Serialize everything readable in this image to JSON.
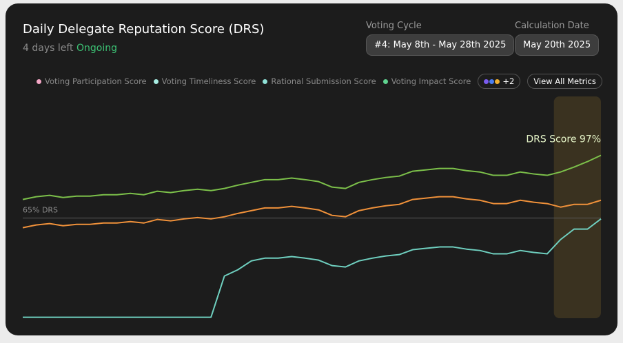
{
  "header": {
    "title": "Daily Delegate Reputation Score (DRS)",
    "time_left": "4 days left",
    "status": "Ongoing",
    "voting_cycle_label": "Voting Cycle",
    "voting_cycle": "#4: May 8th - May 28th 2025",
    "calculation_date_label": "Calculation Date",
    "calculation_date": "May 20th 2025"
  },
  "legend": {
    "items": [
      {
        "name": "Voting Participation Score",
        "color": "#f4a7c6"
      },
      {
        "name": "Voting Timeliness Score",
        "color": "#a8ede3"
      },
      {
        "name": "Rational Submission Score",
        "color": "#8fe0d6"
      },
      {
        "name": "Voting Impact Score",
        "color": "#5fd38f"
      }
    ],
    "more": "+2",
    "button": "View All Metrics"
  },
  "chart_data": {
    "type": "line",
    "ylim": [
      14,
      127
    ],
    "reference_line": {
      "label": "65% DRS",
      "value": 65
    },
    "annotation": {
      "text": "DRS Score 97%",
      "value": 97
    },
    "series": [
      {
        "color": "#7cc04a",
        "values": [
          74.5,
          75.9,
          76.6,
          75.5,
          76.2,
          76.2,
          76.9,
          76.9,
          77.6,
          76.9,
          78.7,
          78.0,
          79.0,
          79.7,
          79.0,
          80.1,
          81.8,
          83.2,
          84.6,
          84.6,
          85.4,
          84.6,
          83.6,
          80.8,
          80.1,
          83.2,
          84.6,
          85.7,
          86.4,
          88.9,
          89.6,
          90.3,
          90.3,
          89.2,
          88.5,
          86.8,
          86.8,
          88.5,
          87.5,
          86.8,
          88.5,
          91.0,
          93.8,
          97
        ]
      },
      {
        "color": "#f0913a",
        "values": [
          60.1,
          61.5,
          62.2,
          61.1,
          61.8,
          61.8,
          62.5,
          62.5,
          63.2,
          62.5,
          64.3,
          63.6,
          64.6,
          65.3,
          64.6,
          65.7,
          67.4,
          68.8,
          70.2,
          70.2,
          71.0,
          70.2,
          69.2,
          66.4,
          65.7,
          68.8,
          70.2,
          71.3,
          72.0,
          74.5,
          75.2,
          75.9,
          75.9,
          74.8,
          74.1,
          72.4,
          72.4,
          74.1,
          73.1,
          72.4,
          70.6,
          72.0,
          72.0,
          74.1
        ]
      },
      {
        "color": "#6fd0c0",
        "values": [
          14.5,
          14.5,
          14.5,
          14.5,
          14.5,
          14.5,
          14.5,
          14.5,
          14.5,
          14.5,
          14.5,
          14.5,
          14.5,
          14.5,
          14.5,
          35.5,
          38.7,
          43.2,
          44.6,
          44.6,
          45.4,
          44.6,
          43.6,
          40.8,
          40.1,
          43.2,
          44.6,
          45.7,
          46.4,
          48.9,
          49.6,
          50.3,
          50.3,
          49.2,
          48.5,
          46.8,
          46.8,
          48.5,
          47.5,
          46.8,
          54.1,
          59.4,
          59.4,
          64.6
        ]
      }
    ]
  }
}
